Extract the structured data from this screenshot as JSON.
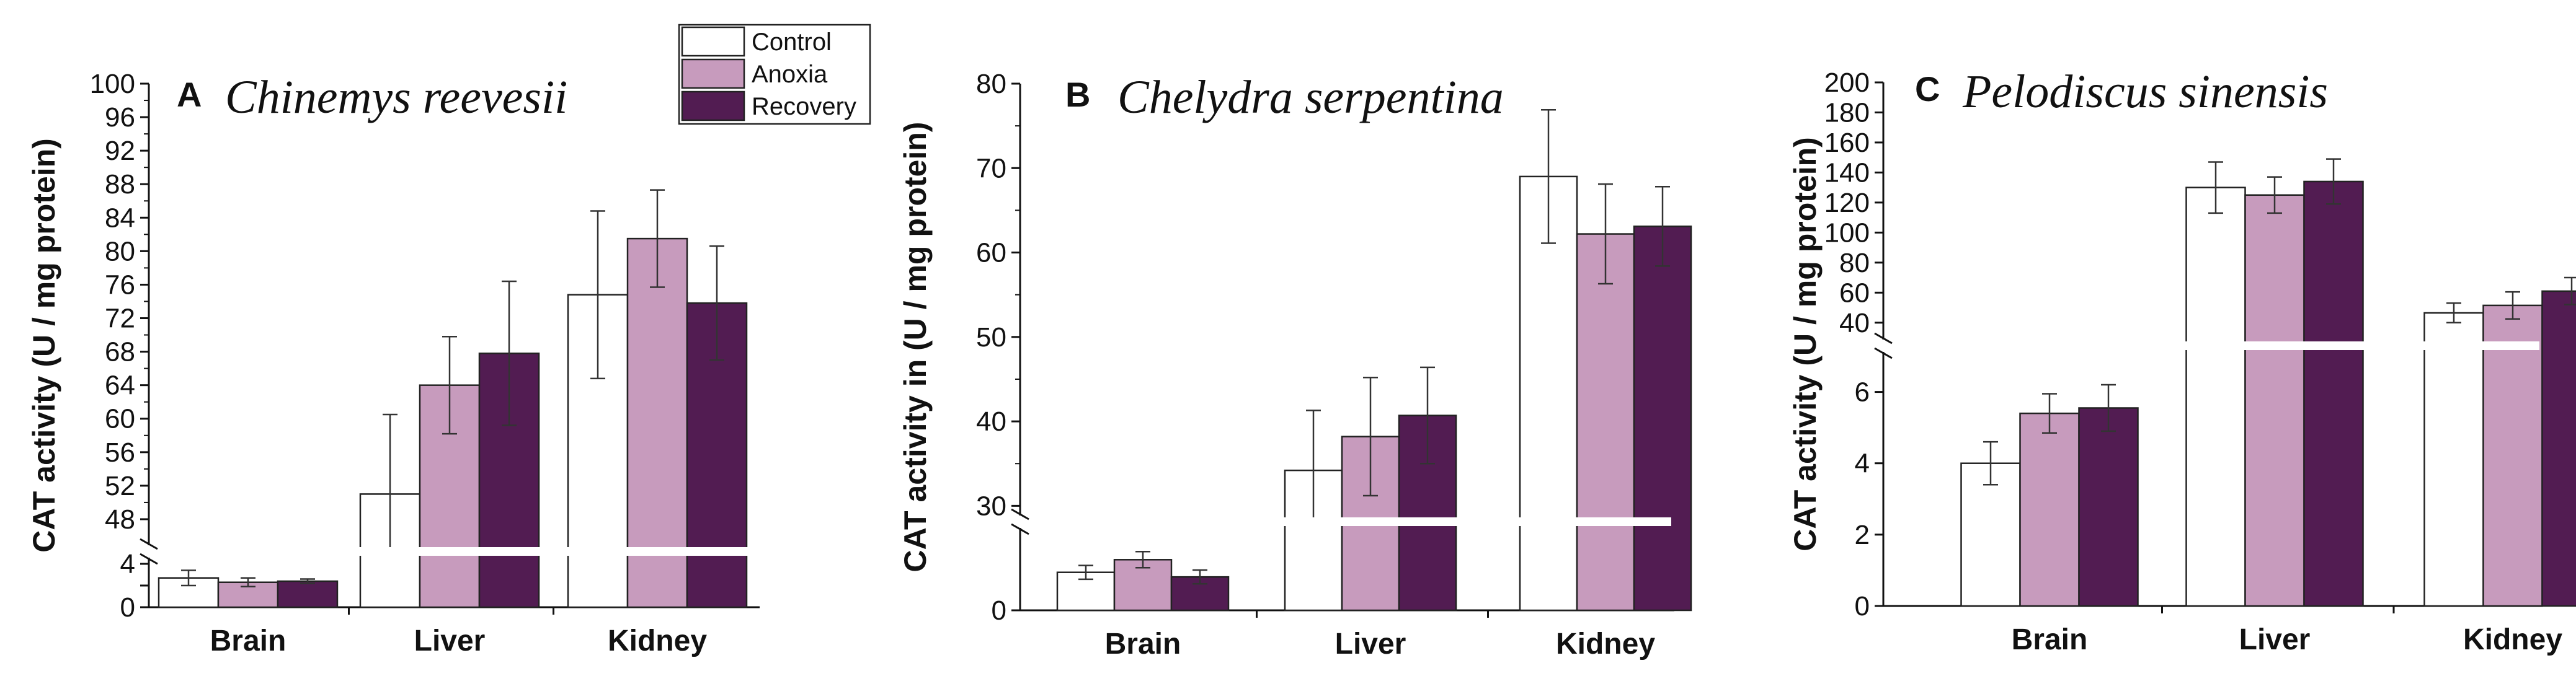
{
  "legend": [
    {
      "label": "Control",
      "color": "#ffffff"
    },
    {
      "label": "Anoxia",
      "color": "#c79bbd"
    },
    {
      "label": "Recovery",
      "color": "#521c52"
    }
  ],
  "chart_data": [
    {
      "type": "bar",
      "panel": "A",
      "title": "Chinemys reevesii",
      "ylabel": "CAT activity (U / mg protein)",
      "categories": [
        "Brain",
        "Liver",
        "Kidney"
      ],
      "axis_break": {
        "lower_range": [
          0,
          4
        ],
        "upper_range": [
          46,
          100
        ]
      },
      "yticks_lower": [
        0,
        2,
        4
      ],
      "ytick_labels_lower": [
        "0",
        "",
        "4"
      ],
      "yticks_upper": [
        48,
        52,
        56,
        60,
        64,
        68,
        72,
        76,
        80,
        84,
        88,
        92,
        96,
        100
      ],
      "series": [
        {
          "name": "Control",
          "values": [
            2.7,
            51.0,
            74.8
          ],
          "errors": [
            0.7,
            9.5,
            10.0
          ]
        },
        {
          "name": "Anoxia",
          "values": [
            2.3,
            64.0,
            81.5
          ],
          "errors": [
            0.4,
            5.8,
            5.8
          ]
        },
        {
          "name": "Recovery",
          "values": [
            2.4,
            67.8,
            73.8
          ],
          "errors": [
            0.2,
            8.6,
            6.8
          ]
        }
      ]
    },
    {
      "type": "bar",
      "panel": "B",
      "title": "Chelydra serpentina",
      "ylabel": "CAT activity in (U / mg protein)",
      "categories": [
        "Brain",
        "Liver",
        "Kidney"
      ],
      "axis_break": {
        "lower_range": [
          0,
          7
        ],
        "upper_range": [
          29,
          80
        ]
      },
      "yticks_lower": [
        0
      ],
      "yticks_upper": [
        30,
        40,
        50,
        60,
        70,
        80
      ],
      "series": [
        {
          "name": "Control",
          "values": [
            3.3,
            34.2,
            69.0
          ],
          "errors": [
            0.6,
            7.1,
            7.9
          ]
        },
        {
          "name": "Anoxia",
          "values": [
            4.4,
            38.2,
            62.2
          ],
          "errors": [
            0.7,
            7.0,
            5.9
          ]
        },
        {
          "name": "Recovery",
          "values": [
            2.9,
            40.7,
            63.1
          ],
          "errors": [
            0.6,
            5.7,
            4.7
          ]
        }
      ]
    },
    {
      "type": "bar",
      "panel": "C",
      "title": "Pelodiscus sinensis",
      "ylabel": "CAT activity (U / mg protein)",
      "categories": [
        "Brain",
        "Liver",
        "Kidney"
      ],
      "axis_break": {
        "lower_range": [
          0,
          7
        ],
        "upper_range": [
          30,
          200
        ]
      },
      "yticks_lower": [
        0,
        2,
        4,
        6
      ],
      "yticks_upper": [
        40,
        60,
        80,
        100,
        120,
        140,
        160,
        180,
        200
      ],
      "series": [
        {
          "name": "Control",
          "values": [
            4.0,
            130.0,
            46.5
          ],
          "errors": [
            0.6,
            17.0,
            6.5
          ]
        },
        {
          "name": "Anoxia",
          "values": [
            5.4,
            125.0,
            51.5
          ],
          "errors": [
            0.55,
            12.0,
            9.0
          ]
        },
        {
          "name": "Recovery",
          "values": [
            5.55,
            134.0,
            61.0
          ],
          "errors": [
            0.65,
            15.0,
            9.0
          ]
        }
      ]
    }
  ]
}
